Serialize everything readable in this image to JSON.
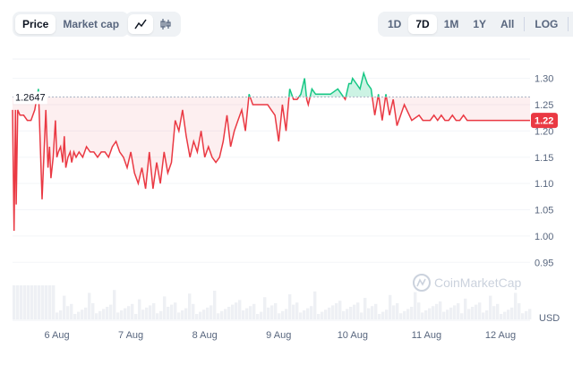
{
  "toolbar": {
    "data_type_tabs": [
      {
        "label": "Price",
        "active": true
      },
      {
        "label": "Market cap",
        "active": false
      }
    ],
    "chart_style": {
      "active": "line-chart-icon",
      "icons": [
        "line-chart-icon",
        "candlestick-icon"
      ]
    },
    "ranges": [
      {
        "label": "1D",
        "active": false
      },
      {
        "label": "7D",
        "active": true
      },
      {
        "label": "1M",
        "active": false
      },
      {
        "label": "1Y",
        "active": false
      },
      {
        "label": "All",
        "active": false
      }
    ],
    "log_label": "LOG",
    "more_label": "···"
  },
  "chart_data": {
    "type": "line",
    "reference_value": 1.2647,
    "reference_label": "1.2647",
    "current_value": 1.22,
    "current_label": "1.22",
    "ylim": [
      0.93,
      1.33
    ],
    "y_ticks": [
      "1.30",
      "1.25",
      "1.20",
      "1.15",
      "1.10",
      "1.05",
      "1.00",
      "0.95"
    ],
    "y_tick_values": [
      1.3,
      1.25,
      1.2,
      1.15,
      1.1,
      1.05,
      1.0,
      0.95
    ],
    "x_ticks": [
      "6 Aug",
      "7 Aug",
      "8 Aug",
      "9 Aug",
      "10 Aug",
      "11 Aug",
      "12 Aug"
    ],
    "x_tick_positions": [
      0.5,
      1.5,
      2.5,
      3.5,
      4.5,
      5.5,
      6.5
    ],
    "xlim": [
      -0.1,
      6.9
    ],
    "volume_unit": "USD",
    "above_color": "#16c784",
    "below_color": "#ea3943",
    "series": [
      {
        "x": [
          -0.1,
          -0.08,
          -0.06,
          -0.05,
          -0.03,
          0.0,
          0.05,
          0.1,
          0.15,
          0.2,
          0.25,
          0.3,
          0.35,
          0.38,
          0.4,
          0.42,
          0.45,
          0.48,
          0.5,
          0.52,
          0.55,
          0.58,
          0.6,
          0.62,
          0.65,
          0.68,
          0.7,
          0.73,
          0.76,
          0.8,
          0.85,
          0.9,
          0.95,
          1.0,
          1.05,
          1.1,
          1.15,
          1.2,
          1.25,
          1.3,
          1.35,
          1.4,
          1.45,
          1.5,
          1.55,
          1.6,
          1.65,
          1.7,
          1.75,
          1.8,
          1.85,
          1.9,
          1.95,
          2.0,
          2.05,
          2.1,
          2.15,
          2.2,
          2.25,
          2.3,
          2.35,
          2.4,
          2.45,
          2.5,
          2.55,
          2.6,
          2.65,
          2.7,
          2.75,
          2.8,
          2.85,
          2.9,
          2.95,
          3.0,
          3.05,
          3.1,
          3.15,
          3.2,
          3.25,
          3.3,
          3.35,
          3.4,
          3.45,
          3.5,
          3.55,
          3.6,
          3.65,
          3.7,
          3.75,
          3.8,
          3.85,
          3.88,
          3.9,
          3.95,
          4.0,
          4.1,
          4.2,
          4.3,
          4.4,
          4.45,
          4.48,
          4.5,
          4.55,
          4.6,
          4.65,
          4.7,
          4.75,
          4.8,
          4.85,
          4.9,
          4.95,
          5.0,
          5.05,
          5.1,
          5.2,
          5.3,
          5.4,
          5.45,
          5.5,
          5.55,
          5.6,
          5.65,
          5.7,
          5.75,
          5.8,
          5.85,
          5.9,
          5.95,
          6.0,
          6.05,
          6.1,
          6.15,
          6.2,
          6.25,
          6.3,
          6.35,
          6.4,
          6.45,
          6.5,
          6.55,
          6.6,
          6.65,
          6.7,
          6.75,
          6.8,
          6.85,
          6.9
        ],
        "y": [
          1.24,
          1.01,
          1.24,
          1.06,
          1.24,
          1.23,
          1.23,
          1.22,
          1.22,
          1.24,
          1.28,
          1.07,
          1.24,
          1.13,
          1.17,
          1.11,
          1.15,
          1.22,
          1.15,
          1.16,
          1.17,
          1.14,
          1.19,
          1.13,
          1.15,
          1.16,
          1.14,
          1.16,
          1.15,
          1.16,
          1.15,
          1.17,
          1.16,
          1.16,
          1.15,
          1.16,
          1.16,
          1.15,
          1.17,
          1.18,
          1.16,
          1.15,
          1.13,
          1.16,
          1.12,
          1.1,
          1.13,
          1.09,
          1.16,
          1.09,
          1.14,
          1.1,
          1.16,
          1.12,
          1.14,
          1.22,
          1.2,
          1.24,
          1.19,
          1.15,
          1.18,
          1.16,
          1.2,
          1.15,
          1.17,
          1.15,
          1.14,
          1.15,
          1.18,
          1.23,
          1.17,
          1.2,
          1.22,
          1.24,
          1.2,
          1.27,
          1.25,
          1.25,
          1.25,
          1.25,
          1.25,
          1.24,
          1.23,
          1.18,
          1.25,
          1.2,
          1.28,
          1.26,
          1.26,
          1.27,
          1.3,
          1.26,
          1.25,
          1.28,
          1.27,
          1.27,
          1.27,
          1.28,
          1.26,
          1.29,
          1.29,
          1.3,
          1.29,
          1.28,
          1.31,
          1.29,
          1.28,
          1.23,
          1.27,
          1.22,
          1.27,
          1.23,
          1.26,
          1.21,
          1.25,
          1.22,
          1.23,
          1.22,
          1.22,
          1.22,
          1.23,
          1.22,
          1.23,
          1.22,
          1.22,
          1.23,
          1.22,
          1.22,
          1.23,
          1.22,
          1.22,
          1.22,
          1.22,
          1.22,
          1.22,
          1.22,
          1.22,
          1.22,
          1.22,
          1.22,
          1.22,
          1.22,
          1.22,
          1.22,
          1.22,
          1.22,
          1.22
        ]
      }
    ]
  },
  "watermark": "CoinMarketCap"
}
